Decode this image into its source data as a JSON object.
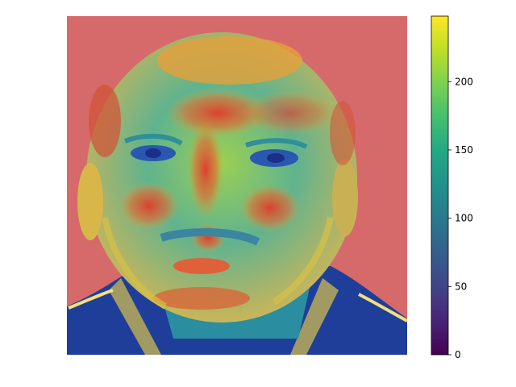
{
  "chart_data": {
    "type": "heatmap",
    "title": "",
    "xlabel": "",
    "ylabel": "",
    "axes_visible": false,
    "image_content": "portrait photo with a jet colormap saliency overlay",
    "colorbar": {
      "colormap": "viridis",
      "range": [
        0,
        248
      ],
      "ticks": [
        0,
        50,
        100,
        150,
        200
      ],
      "tick_labels": [
        "0",
        "50",
        "100",
        "150",
        "200"
      ]
    }
  }
}
